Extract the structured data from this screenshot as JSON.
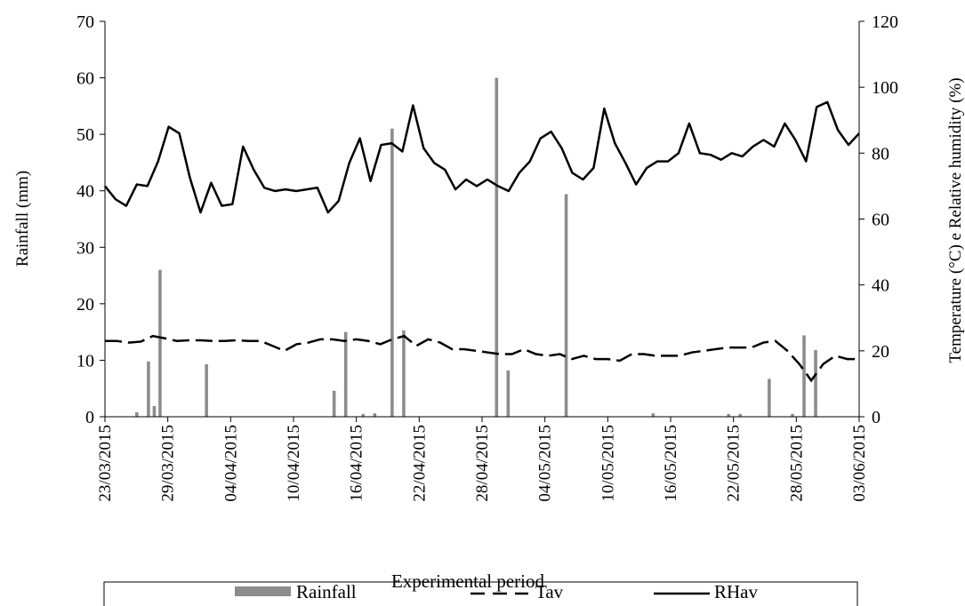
{
  "chart_data": {
    "type": "bar+line",
    "xlabel": "Experimental period",
    "ylabel_left": "Rainfall (mm)",
    "ylabel_right": "Temperature (°C) e Relative humidity (%)",
    "ylim_left": [
      0,
      70
    ],
    "yticks_left": [
      "0",
      "10",
      "20",
      "30",
      "40",
      "50",
      "60",
      "70"
    ],
    "ylim_right": [
      0,
      120
    ],
    "yticks_right": [
      "0",
      "20",
      "40",
      "60",
      "80",
      "100",
      "120"
    ],
    "x_tick_labels": [
      "23/03/2015",
      "29/03/2015",
      "04/04/2015",
      "10/04/2015",
      "16/04/2015",
      "22/04/2015",
      "28/04/2015",
      "04/05/2015",
      "10/05/2015",
      "16/05/2015",
      "22/05/2015",
      "28/05/2015",
      "03/06/2015"
    ],
    "grid": false,
    "legend_position": "bottom",
    "legend": [
      "Rainfall",
      "Tav",
      "RHav"
    ],
    "series": [
      {
        "name": "Rainfall",
        "kind": "bar",
        "axis": "left",
        "color": "#8c8c8c",
        "values": [
          0,
          0,
          0,
          0,
          0,
          0.8,
          0,
          9.8,
          1.9,
          26,
          0,
          0,
          0,
          0,
          0,
          0,
          0,
          9.3,
          0,
          0,
          0,
          0,
          0,
          0,
          0,
          0,
          0,
          0,
          0,
          0,
          0,
          0,
          0,
          0,
          0,
          0,
          0,
          0,
          0,
          4.6,
          0,
          15,
          0,
          0,
          0.5,
          0,
          0.6,
          0,
          0,
          51,
          0,
          15.3,
          0,
          0,
          0,
          0,
          0,
          0,
          0,
          0,
          0,
          0,
          0,
          0,
          0,
          0,
          0,
          60,
          0,
          8.2,
          0,
          0,
          0,
          0,
          0,
          0,
          0,
          0,
          0,
          39.4,
          0,
          0,
          0,
          0,
          0,
          0,
          0,
          0,
          0,
          0,
          0,
          0,
          0,
          0,
          0.6,
          0,
          0,
          0,
          0,
          0,
          0,
          0,
          0,
          0,
          0,
          0,
          0,
          0.5,
          0,
          0.5,
          0,
          0,
          0,
          0,
          6.7,
          0,
          0,
          0,
          0.5,
          0,
          14.4,
          0,
          11.8,
          0,
          0,
          0,
          0,
          0,
          0,
          0
        ]
      },
      {
        "name": "Tav",
        "kind": "line",
        "dash": true,
        "axis": "right",
        "color": "#000000",
        "values": [
          23,
          23,
          22.5,
          22.8,
          24.5,
          23.8,
          23,
          23.2,
          23.2,
          23,
          23,
          23.2,
          23,
          23,
          21.5,
          20,
          22,
          22.5,
          23.5,
          23.5,
          23,
          23.5,
          23,
          22,
          23.5,
          24.5,
          21.5,
          23.5,
          22.5,
          20.5,
          20.5,
          20,
          19.5,
          19,
          19,
          20.5,
          19,
          18.5,
          19,
          17.5,
          18.5,
          17.5,
          17.5,
          17,
          19,
          19,
          18.5,
          18.5,
          18.5,
          19.5,
          20,
          20.5,
          21,
          21,
          21,
          22.5,
          23,
          20,
          16,
          11,
          16,
          18.5,
          17.5,
          17.5
        ]
      },
      {
        "name": "RHav",
        "kind": "line",
        "dash": false,
        "axis": "right",
        "color": "#000000",
        "values": [
          70,
          66,
          64,
          70.5,
          70,
          77.5,
          88,
          86,
          72.5,
          62,
          71,
          64,
          64.5,
          82,
          75,
          69.5,
          68.5,
          69,
          68.5,
          69,
          69.5,
          62,
          65.5,
          77,
          84.5,
          71.5,
          82.5,
          83,
          80.5,
          94.5,
          81.5,
          77,
          75,
          69,
          72,
          70,
          72,
          70,
          68.5,
          74,
          77.5,
          84.5,
          86.5,
          81.5,
          74,
          72,
          75.5,
          93.5,
          83,
          77,
          70.5,
          75.5,
          77.5,
          77.5,
          80,
          89,
          80,
          79.5,
          78,
          80,
          79,
          82,
          84,
          82,
          89,
          84,
          77.5,
          94,
          95.5,
          87,
          82.5,
          86
        ]
      }
    ]
  }
}
